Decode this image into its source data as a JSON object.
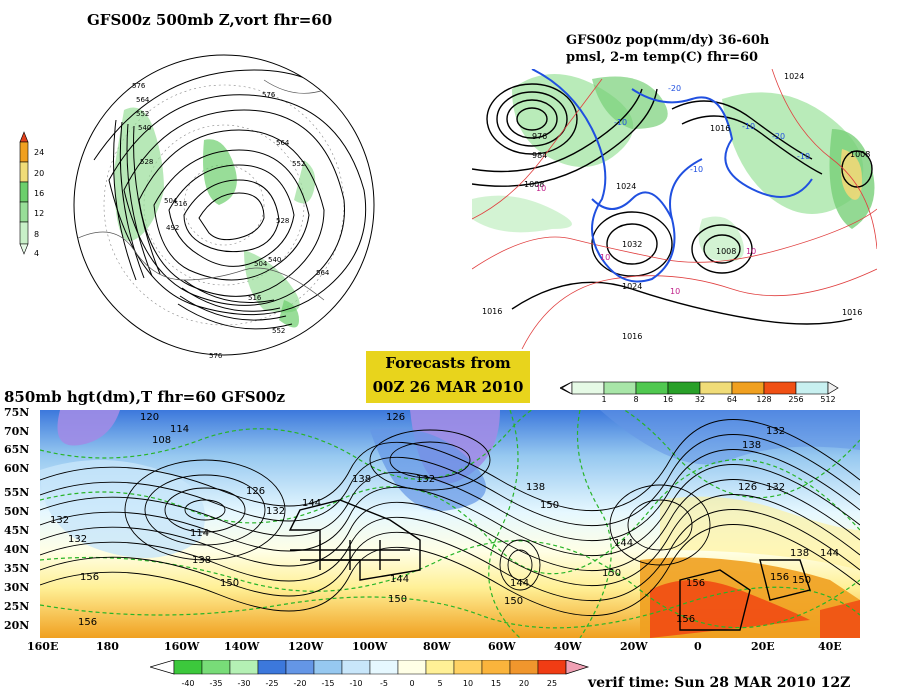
{
  "panel_polar": {
    "title": "GFS00z   500mb Z,vort     fhr=60",
    "colorbar_ticks": [
      "4",
      "8",
      "12",
      "16",
      "20",
      "24"
    ],
    "contour_labels": [
      "576",
      "564",
      "552",
      "540",
      "528",
      "516",
      "504",
      "492",
      "576",
      "564",
      "552",
      "528",
      "540",
      "504",
      "516",
      "552",
      "564",
      "576"
    ]
  },
  "panel_precip": {
    "title_line1": "GFS00z pop(mm/dy) 36-60h",
    "title_line2": "pmsl, 2-m temp(C)   fhr=60",
    "isobar_labels": [
      "976",
      "984",
      "1008",
      "1024",
      "1016",
      "1032",
      "1008",
      "1016",
      "1024",
      "1016",
      "1008",
      "1016",
      "1024"
    ],
    "temp_labels": [
      "10",
      "10",
      "-10",
      "-20",
      "-10",
      "10",
      "10",
      "-10",
      "-20",
      "-10"
    ],
    "colorbar_ticks": [
      "1",
      "8",
      "16",
      "32",
      "64",
      "128",
      "256",
      "512"
    ]
  },
  "forecast_box": {
    "line1": "Forecasts from",
    "line2": "00Z 26 MAR 2010"
  },
  "panel_850": {
    "title": "850mb hgt(dm),T  fhr=60 GFS00z",
    "lat_labels": [
      "75N",
      "70N",
      "65N",
      "60N",
      "55N",
      "50N",
      "45N",
      "40N",
      "35N",
      "30N",
      "25N",
      "20N"
    ],
    "lon_labels": [
      "160E",
      "180",
      "160W",
      "140W",
      "120W",
      "100W",
      "80W",
      "60W",
      "40W",
      "20W",
      "0",
      "20E",
      "40E"
    ],
    "height_labels": [
      "120",
      "114",
      "108",
      "126",
      "132",
      "138",
      "144",
      "132",
      "114",
      "138",
      "150",
      "156",
      "156",
      "150",
      "144",
      "132",
      "126",
      "132",
      "138",
      "144",
      "150",
      "156",
      "150",
      "144",
      "150",
      "138",
      "132",
      "126",
      "132",
      "156",
      "156",
      "150",
      "144",
      "138"
    ],
    "colorbar_ticks": [
      "-40",
      "-35",
      "-30",
      "-25",
      "-20",
      "-15",
      "-10",
      "-5",
      "0",
      "5",
      "10",
      "15",
      "20",
      "25"
    ],
    "colors": [
      "#3cc83c",
      "#78dc78",
      "#b4f0b4",
      "#3c78dc",
      "#6496e6",
      "#96c8f0",
      "#c8e6fa",
      "#e6f8ff",
      "#ffffe6",
      "#fff096",
      "#ffd264",
      "#fab43c",
      "#f0962d",
      "#f03c14"
    ]
  },
  "verif": "verif time: Sun 28 MAR 2010 12Z"
}
